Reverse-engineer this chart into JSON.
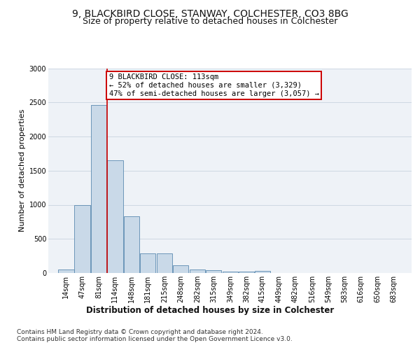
{
  "title1": "9, BLACKBIRD CLOSE, STANWAY, COLCHESTER, CO3 8BG",
  "title2": "Size of property relative to detached houses in Colchester",
  "xlabel": "Distribution of detached houses by size in Colchester",
  "ylabel": "Number of detached properties",
  "bins": [
    14,
    47,
    81,
    114,
    148,
    181,
    215,
    248,
    282,
    315,
    349,
    382,
    415,
    449,
    482,
    516,
    549,
    583,
    616,
    650,
    683
  ],
  "bar_heights": [
    55,
    1000,
    2460,
    1650,
    830,
    290,
    290,
    115,
    50,
    40,
    25,
    20,
    35,
    0,
    0,
    0,
    0,
    0,
    0,
    0
  ],
  "bar_color": "#c9d9e8",
  "bar_edge_color": "#5a8ab0",
  "vline_x": 114,
  "vline_color": "#cc0000",
  "annotation_line1": "9 BLACKBIRD CLOSE: 113sqm",
  "annotation_line2": "← 52% of detached houses are smaller (3,329)",
  "annotation_line3": "47% of semi-detached houses are larger (3,057) →",
  "annotation_box_color": "#ffffff",
  "annotation_box_edge": "#cc0000",
  "ylim": [
    0,
    3000
  ],
  "yticks": [
    0,
    500,
    1000,
    1500,
    2000,
    2500,
    3000
  ],
  "background_color": "#eef2f7",
  "footer_text": "Contains HM Land Registry data © Crown copyright and database right 2024.\nContains public sector information licensed under the Open Government Licence v3.0.",
  "title1_fontsize": 10,
  "title2_fontsize": 9,
  "xlabel_fontsize": 8.5,
  "ylabel_fontsize": 8,
  "tick_fontsize": 7,
  "annotation_fontsize": 7.5,
  "footer_fontsize": 6.5
}
